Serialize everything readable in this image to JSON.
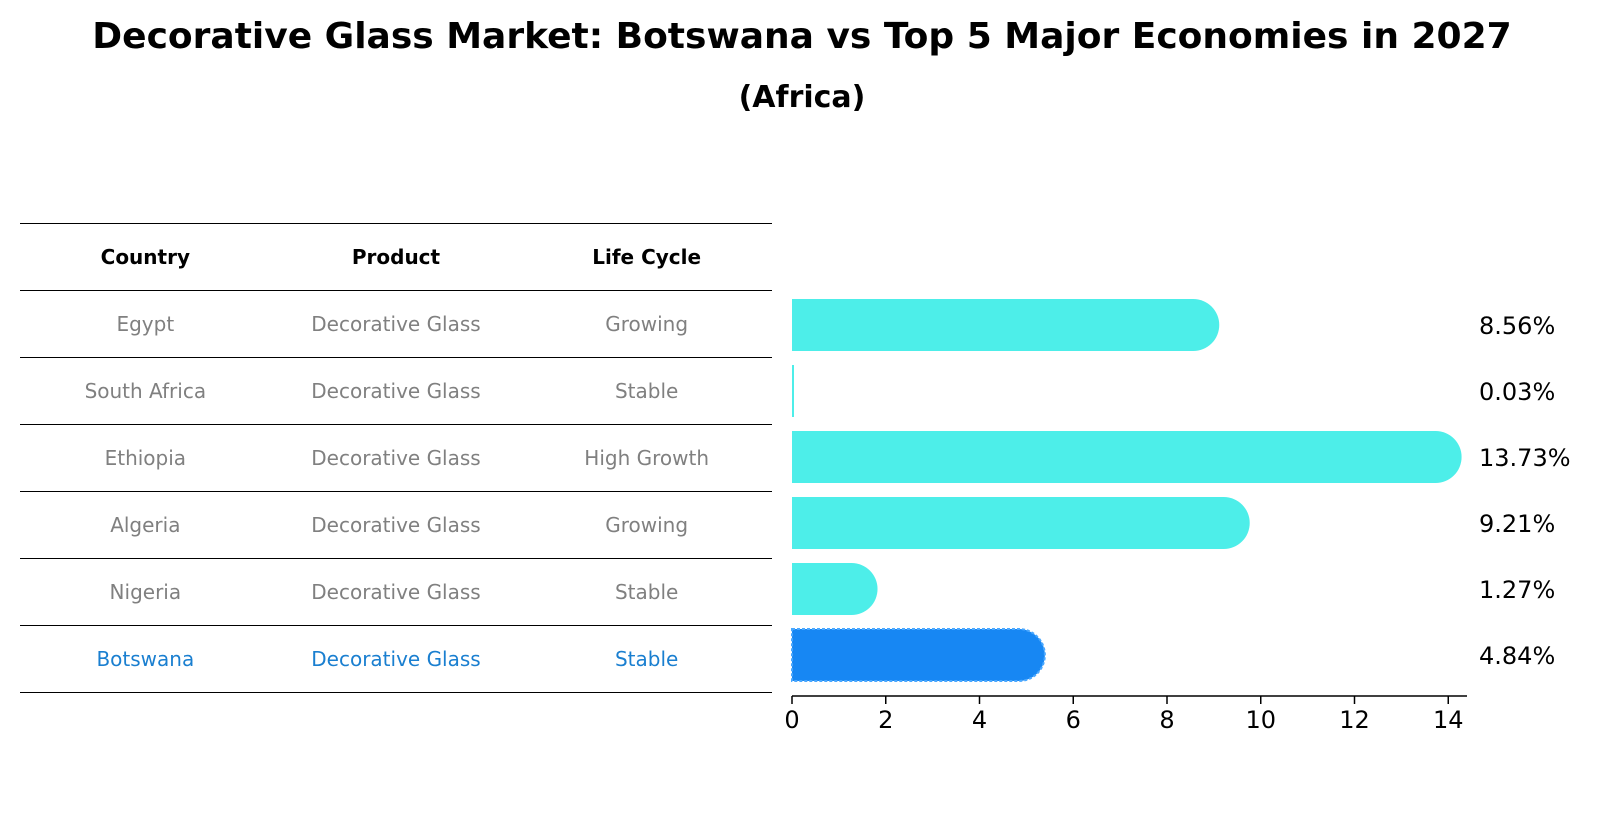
{
  "header": {
    "title": "Decorative Glass Market: Botswana vs Top 5 Major Economies in 2027",
    "subtitle": "(Africa)"
  },
  "table": {
    "columns": [
      "Country",
      "Product",
      "Life Cycle"
    ],
    "rows": [
      {
        "country": "Egypt",
        "product": "Decorative Glass",
        "life_cycle": "Growing"
      },
      {
        "country": "South Africa",
        "product": "Decorative Glass",
        "life_cycle": "Stable"
      },
      {
        "country": "Ethiopia",
        "product": "Decorative Glass",
        "life_cycle": "High Growth"
      },
      {
        "country": "Algeria",
        "product": "Decorative Glass",
        "life_cycle": "Growing"
      },
      {
        "country": "Nigeria",
        "product": "Decorative Glass",
        "life_cycle": "Stable"
      },
      {
        "country": "Botswana",
        "product": "Decorative Glass",
        "life_cycle": "Stable"
      }
    ]
  },
  "colors": {
    "bar": "#4deee9",
    "highlight_bar": "#1787f3",
    "highlight_text": "#1a7fd0",
    "muted_text": "#808080"
  },
  "chart_data": {
    "type": "bar",
    "orientation": "horizontal",
    "title": "Decorative Glass Market: Botswana vs Top 5 Major Economies in 2027",
    "subtitle": "(Africa)",
    "categories": [
      "Egypt",
      "South Africa",
      "Ethiopia",
      "Algeria",
      "Nigeria",
      "Botswana"
    ],
    "values": [
      8.56,
      0.03,
      13.73,
      9.21,
      1.27,
      4.84
    ],
    "value_labels": [
      "8.56%",
      "0.03%",
      "13.73%",
      "9.21%",
      "1.27%",
      "4.84%"
    ],
    "highlight": "Botswana",
    "xlim": [
      0,
      14.4
    ],
    "xticks": [
      0,
      2,
      4,
      6,
      8,
      10,
      12,
      14
    ],
    "xlabel": "",
    "ylabel": "",
    "grid": false
  }
}
